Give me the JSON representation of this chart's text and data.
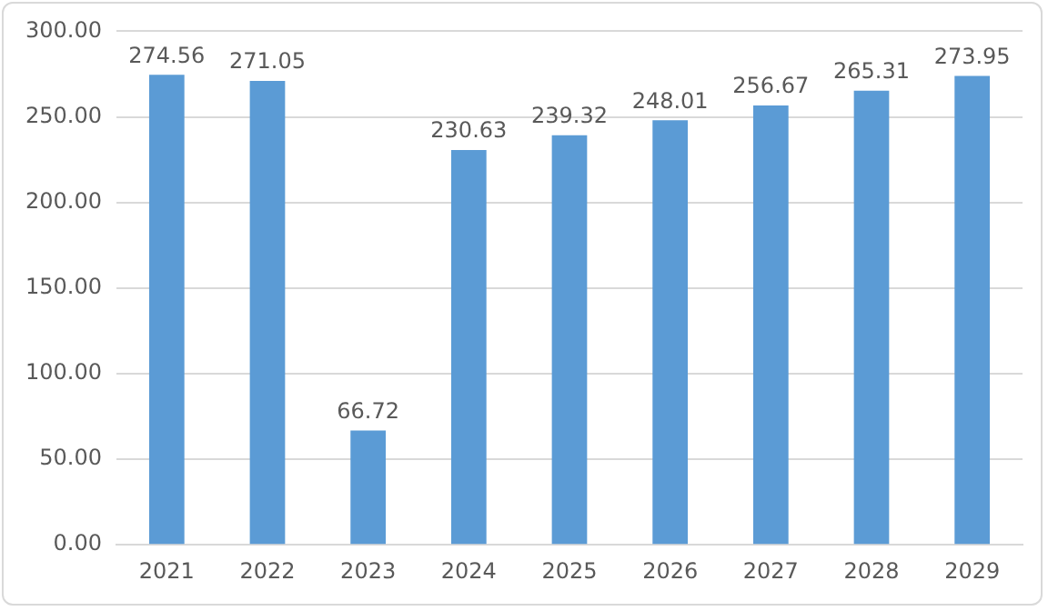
{
  "chart_data": {
    "type": "bar",
    "categories": [
      "2021",
      "2022",
      "2023",
      "2024",
      "2025",
      "2026",
      "2027",
      "2028",
      "2029"
    ],
    "values": [
      274.56,
      271.05,
      66.72,
      230.63,
      239.32,
      248.01,
      256.67,
      265.31,
      273.95
    ],
    "color": "#5b9bd5",
    "ylim": [
      0,
      300
    ],
    "yticks": [
      {
        "value": 0,
        "label": "0.00"
      },
      {
        "value": 50,
        "label": "50.00"
      },
      {
        "value": 100,
        "label": "100.00"
      },
      {
        "value": 150,
        "label": "150.00"
      },
      {
        "value": 200,
        "label": "200.00"
      },
      {
        "value": 250,
        "label": "250.00"
      },
      {
        "value": 300,
        "label": "300.00"
      }
    ],
    "grid": "y",
    "data_labels": true
  }
}
